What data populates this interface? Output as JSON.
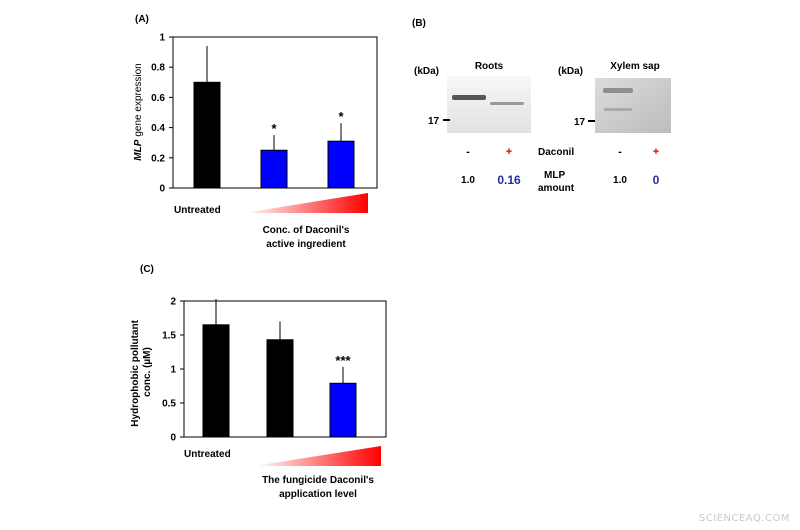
{
  "panels": {
    "a_label": "(A)",
    "b_label": "(B)",
    "c_label": "(C)"
  },
  "chart_data": [
    {
      "type": "bar",
      "panel": "(A)",
      "ylabel_italic": "MLP",
      "ylabel": "gene expression",
      "ylim": [
        0,
        1
      ],
      "yticks": [
        "0",
        "0.2",
        "0.4",
        "0.6",
        "0.8",
        "1"
      ],
      "ytick_values": [
        0,
        0.2,
        0.4,
        0.6,
        0.8,
        1
      ],
      "values": [
        0.7,
        0.25,
        0.31
      ],
      "errors": [
        0.24,
        0.1,
        0.12
      ],
      "bar_colors": [
        "#000000",
        "#0000ff",
        "#0000ff"
      ],
      "significance": [
        "",
        "*",
        "*"
      ],
      "untreated_label": "Untreated",
      "gradient_caption": [
        "Conc. of Daconil's",
        "active ingredient"
      ],
      "gradient_color": "#ff0000",
      "grid": false
    },
    {
      "type": "bar",
      "panel": "(C)",
      "ylabel": [
        "Hydrophobic pollutant",
        "conc. (µM)"
      ],
      "ylim": [
        0,
        2
      ],
      "yticks": [
        "0",
        "0.5",
        "1",
        "1.5",
        "2"
      ],
      "ytick_values": [
        0,
        0.5,
        1,
        1.5,
        2
      ],
      "values": [
        1.65,
        1.43,
        0.79
      ],
      "errors": [
        0.38,
        0.27,
        0.24
      ],
      "bar_colors": [
        "#000000",
        "#000000",
        "#0000ff"
      ],
      "significance": [
        "",
        "",
        "***"
      ],
      "untreated_label": "Untreated",
      "gradient_caption": [
        "The fungicide Daconil's",
        "application level"
      ],
      "gradient_color": "#ff0000",
      "grid": false
    }
  ],
  "western_blot": {
    "kda_label": "(kDa)",
    "marker": "17",
    "roots_title": "Roots",
    "xylem_title": "Xylem sap",
    "minus": "-",
    "plus": "+",
    "daconil_label": "Daconil",
    "mlp_label": [
      "MLP",
      "amount"
    ],
    "roots_values": [
      "1.0",
      "0.16"
    ],
    "xylem_values": [
      "1.0",
      "0"
    ],
    "plus_color": "#e60000",
    "value_highlight_color": "#1f2f9a"
  },
  "watermark": "SCIENCEAQ.COM"
}
